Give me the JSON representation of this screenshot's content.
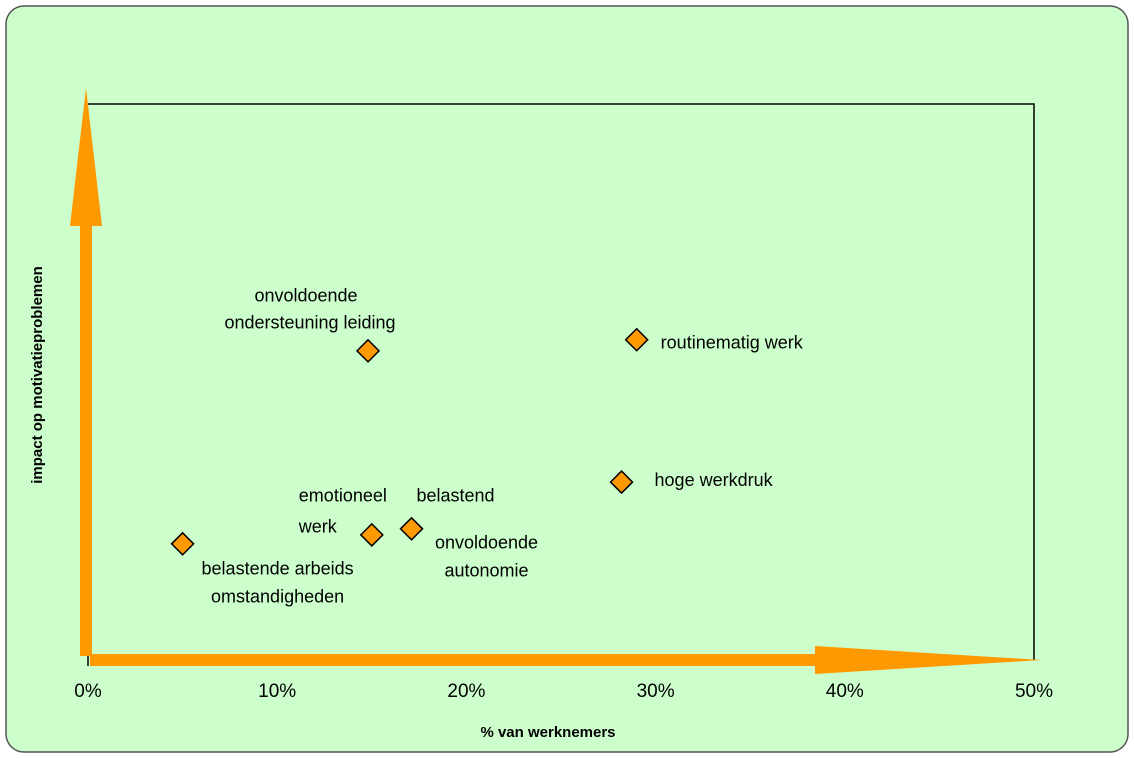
{
  "chart_data": {
    "type": "scatter",
    "x_label": "% van werknemers",
    "y_label": "impact op motivatieproblemen",
    "color": "#ff9900",
    "points": [
      {
        "label": [
          "onvoldoende",
          "ondersteuning leiding"
        ],
        "x": 14.8,
        "y": 55.6
      },
      {
        "label": [
          "routinematig werk"
        ],
        "x": 29.0,
        "y": 57.6
      },
      {
        "label": [
          "hoge werkdruk"
        ],
        "x": 28.2,
        "y": 32.0
      },
      {
        "label": [
          "emotioneel",
          "werk"
        ],
        "x": 15.0,
        "y": 22.5
      },
      {
        "label": [
          "belastend",
          "onvoldoende",
          "autonomie"
        ],
        "x": 17.1,
        "y": 23.6
      },
      {
        "label": [
          "belastende arbeids",
          "omstandigheden"
        ],
        "x": 5.0,
        "y": 20.9
      }
    ],
    "xlim": [
      0,
      50
    ],
    "xticks": [
      {
        "value": 0,
        "label": "0%"
      },
      {
        "value": 10,
        "label": "10%"
      },
      {
        "value": 20,
        "label": "20%"
      },
      {
        "value": 30,
        "label": "30%"
      },
      {
        "value": 40,
        "label": "40%"
      },
      {
        "value": 50,
        "label": "50%"
      }
    ],
    "ylim": [
      0,
      100
    ]
  }
}
